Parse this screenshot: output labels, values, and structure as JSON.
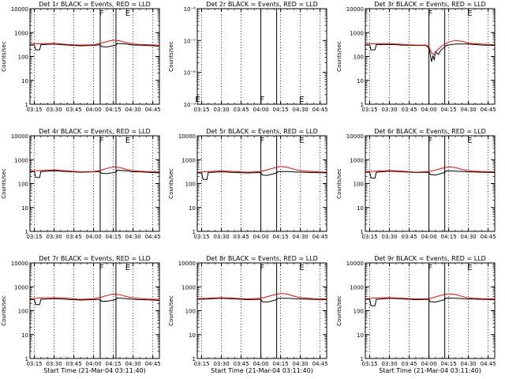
{
  "chart_data": [
    {
      "type": "line",
      "title": "Det 1r BLACK = Events, RED = LLD",
      "ylabel": "Counts/sec",
      "xlabel": "",
      "yscale": "log",
      "ylim": [
        1,
        10000
      ],
      "y_ticks": [
        "1",
        "10",
        "100",
        "1000",
        "10000"
      ],
      "x_ticks": [
        "03:15",
        "03:30",
        "03:45",
        "04:00",
        "04:15",
        "04:30",
        "04:45"
      ],
      "xlim": [
        "03:11:40",
        "04:50:00"
      ],
      "markers": [
        {
          "label": "F",
          "time": "04:06"
        },
        {
          "label": "E",
          "time": "04:26"
        }
      ],
      "solid_lines": [
        "04:05",
        "04:17"
      ],
      "series": [
        {
          "color": "#000000",
          "x": [
            "03:11:40",
            "03:15",
            "03:16",
            "03:19",
            "03:20",
            "03:30",
            "03:40",
            "03:50",
            "04:00",
            "04:05",
            "04:06",
            "04:10",
            "04:17",
            "04:18",
            "04:25",
            "04:30",
            "04:35",
            "04:45",
            "04:50"
          ],
          "y": [
            300,
            300,
            190,
            190,
            310,
            330,
            300,
            280,
            290,
            310,
            260,
            250,
            300,
            350,
            330,
            300,
            300,
            280,
            270
          ]
        },
        {
          "color": "#ff0000",
          "x": [
            "03:11:40",
            "03:20",
            "03:30",
            "03:40",
            "03:50",
            "04:00",
            "04:05",
            "04:10",
            "04:15",
            "04:20",
            "04:25",
            "04:30",
            "04:40",
            "04:50"
          ],
          "y": [
            330,
            340,
            350,
            320,
            300,
            310,
            350,
            420,
            480,
            450,
            380,
            330,
            310,
            300
          ]
        }
      ]
    },
    {
      "type": "line",
      "title": "Det 2r BLACK = Events, RED = LLD",
      "ylabel": "Counts/sec",
      "xlabel": "",
      "yscale": "log",
      "ylim": [
        1e-09,
        1e-06
      ],
      "y_ticks": [
        "10⁻⁹",
        "10⁻⁸",
        "10⁻⁷",
        "10⁻⁶"
      ],
      "x_ticks": [
        "03:15",
        "03:30",
        "03:45",
        "04:00",
        "04:15",
        "04:30",
        "04:45"
      ],
      "xlim": [
        "03:11:40",
        "04:50:00"
      ],
      "markers": [
        {
          "label": "E",
          "time": "03:12",
          "pos": "bottom"
        },
        {
          "label": "F",
          "time": "04:01",
          "pos": "bottom"
        },
        {
          "label": "E",
          "time": "04:31",
          "pos": "bottom"
        }
      ],
      "solid_lines": [
        "04:00",
        "04:12"
      ],
      "series": []
    },
    {
      "type": "line",
      "title": "Det 3r BLACK = Events, RED = LLD",
      "ylabel": "Counts/sec",
      "xlabel": "",
      "yscale": "log",
      "ylim": [
        1,
        10000
      ],
      "y_ticks": [
        "1",
        "10",
        "100",
        "1000",
        "10000"
      ],
      "x_ticks": [
        "03:15",
        "03:30",
        "03:45",
        "04:00",
        "04:15",
        "04:30",
        "04:45"
      ],
      "xlim": [
        "03:11:40",
        "04:50:00"
      ],
      "markers": [
        {
          "label": "F",
          "time": "04:01"
        },
        {
          "label": "E",
          "time": "04:31"
        }
      ],
      "solid_lines": [
        "04:00",
        "04:12"
      ],
      "series": [
        {
          "color": "#000000",
          "x": [
            "03:11:40",
            "03:15",
            "03:16",
            "03:19",
            "03:20",
            "03:30",
            "03:40",
            "03:50",
            "03:58",
            "04:00",
            "04:01",
            "04:02",
            "04:03",
            "04:04",
            "04:05",
            "04:07",
            "04:09",
            "04:12",
            "04:13",
            "04:20",
            "04:30",
            "04:40",
            "04:50"
          ],
          "y": [
            300,
            300,
            190,
            190,
            310,
            320,
            300,
            290,
            290,
            220,
            120,
            60,
            110,
            70,
            160,
            120,
            180,
            250,
            290,
            330,
            330,
            300,
            290
          ]
        },
        {
          "color": "#ff0000",
          "x": [
            "03:11:40",
            "03:20",
            "03:30",
            "03:40",
            "03:50",
            "03:58",
            "04:00",
            "04:02",
            "04:04",
            "04:06",
            "04:10",
            "04:15",
            "04:20",
            "04:25",
            "04:30",
            "04:40",
            "04:50"
          ],
          "y": [
            330,
            340,
            340,
            320,
            300,
            300,
            250,
            140,
            120,
            180,
            280,
            400,
            470,
            430,
            360,
            330,
            310
          ]
        }
      ]
    },
    {
      "type": "line",
      "title": "Det 4r BLACK = Events, RED = LLD",
      "ylabel": "Counts/sec",
      "xlabel": "",
      "yscale": "log",
      "ylim": [
        1,
        10000
      ],
      "y_ticks": [
        "1",
        "10",
        "100",
        "1000",
        "10000"
      ],
      "x_ticks": [
        "03:15",
        "03:30",
        "03:45",
        "04:00",
        "04:15",
        "04:30",
        "04:45"
      ],
      "xlim": [
        "03:11:40",
        "04:50:00"
      ],
      "markers": [
        {
          "label": "F",
          "time": "04:06"
        },
        {
          "label": "E",
          "time": "04:26"
        }
      ],
      "solid_lines": [
        "04:05",
        "04:17"
      ],
      "series": [
        {
          "color": "#000000",
          "x": [
            "03:11:40",
            "03:15",
            "03:16",
            "03:19",
            "03:20",
            "03:30",
            "03:40",
            "03:50",
            "04:00",
            "04:05",
            "04:06",
            "04:10",
            "04:17",
            "04:18",
            "04:25",
            "04:30",
            "04:35",
            "04:45",
            "04:50"
          ],
          "y": [
            320,
            320,
            180,
            180,
            320,
            340,
            320,
            300,
            310,
            320,
            270,
            260,
            300,
            360,
            340,
            310,
            310,
            290,
            280
          ]
        },
        {
          "color": "#ff0000",
          "x": [
            "03:11:40",
            "03:20",
            "03:30",
            "03:40",
            "03:50",
            "04:00",
            "04:05",
            "04:10",
            "04:15",
            "04:20",
            "04:25",
            "04:30",
            "04:40",
            "04:50"
          ],
          "y": [
            340,
            350,
            370,
            340,
            310,
            320,
            360,
            430,
            500,
            470,
            390,
            340,
            320,
            310
          ]
        }
      ]
    },
    {
      "type": "line",
      "title": "Det 5r BLACK = Events, RED = LLD",
      "ylabel": "Counts/sec",
      "xlabel": "",
      "yscale": "log",
      "ylim": [
        1,
        10000
      ],
      "y_ticks": [
        "1",
        "10",
        "100",
        "1000",
        "10000"
      ],
      "x_ticks": [
        "03:15",
        "03:30",
        "03:45",
        "04:00",
        "04:15",
        "04:30",
        "04:45"
      ],
      "xlim": [
        "03:11:40",
        "04:50:00"
      ],
      "markers": [
        {
          "label": "F",
          "time": "04:01"
        },
        {
          "label": "E",
          "time": "04:31"
        }
      ],
      "solid_lines": [
        "04:00",
        "04:12"
      ],
      "series": [
        {
          "color": "#000000",
          "x": [
            "03:11:40",
            "03:15",
            "03:16",
            "03:19",
            "03:20",
            "03:30",
            "03:40",
            "03:50",
            "04:00",
            "04:01",
            "04:05",
            "04:12",
            "04:13",
            "04:20",
            "04:30",
            "04:40",
            "04:50"
          ],
          "y": [
            280,
            280,
            150,
            150,
            290,
            310,
            290,
            280,
            290,
            230,
            220,
            280,
            320,
            320,
            300,
            290,
            280
          ]
        },
        {
          "color": "#ff0000",
          "x": [
            "03:11:40",
            "03:20",
            "03:30",
            "03:40",
            "03:50",
            "04:00",
            "04:05",
            "04:10",
            "04:15",
            "04:20",
            "04:25",
            "04:30",
            "04:40",
            "04:50"
          ],
          "y": [
            300,
            320,
            340,
            320,
            300,
            320,
            380,
            450,
            520,
            480,
            400,
            340,
            320,
            300
          ]
        }
      ]
    },
    {
      "type": "line",
      "title": "Det 6r BLACK = Events, RED = LLD",
      "ylabel": "Counts/sec",
      "xlabel": "",
      "yscale": "log",
      "ylim": [
        1,
        10000
      ],
      "y_ticks": [
        "1",
        "10",
        "100",
        "1000",
        "10000"
      ],
      "x_ticks": [
        "03:15",
        "03:30",
        "03:45",
        "04:00",
        "04:15",
        "04:30",
        "04:45"
      ],
      "xlim": [
        "03:11:40",
        "04:50:00"
      ],
      "markers": [
        {
          "label": "F",
          "time": "04:01"
        },
        {
          "label": "E",
          "time": "04:31"
        }
      ],
      "solid_lines": [
        "04:00",
        "04:12"
      ],
      "series": [
        {
          "color": "#000000",
          "x": [
            "03:11:40",
            "03:15",
            "03:16",
            "03:19",
            "03:20",
            "03:30",
            "03:40",
            "03:50",
            "04:00",
            "04:01",
            "04:05",
            "04:12",
            "04:13",
            "04:20",
            "04:30",
            "04:40",
            "04:50"
          ],
          "y": [
            300,
            300,
            170,
            170,
            300,
            330,
            310,
            290,
            300,
            240,
            230,
            290,
            340,
            330,
            310,
            300,
            290
          ]
        },
        {
          "color": "#ff0000",
          "x": [
            "03:11:40",
            "03:20",
            "03:30",
            "03:40",
            "03:50",
            "04:00",
            "04:05",
            "04:10",
            "04:15",
            "04:20",
            "04:25",
            "04:30",
            "04:40",
            "04:50"
          ],
          "y": [
            320,
            330,
            350,
            330,
            300,
            320,
            370,
            440,
            500,
            470,
            390,
            340,
            320,
            310
          ]
        }
      ]
    },
    {
      "type": "line",
      "title": "Det 7r BLACK = Events, RED = LLD",
      "ylabel": "Counts/sec",
      "xlabel": "Start Time (21-Mar-04 03:11:40)",
      "yscale": "log",
      "ylim": [
        1,
        10000
      ],
      "y_ticks": [
        "1",
        "10",
        "100",
        "1000",
        "10000"
      ],
      "x_ticks": [
        "03:15",
        "03:30",
        "03:45",
        "04:00",
        "04:15",
        "04:30",
        "04:45"
      ],
      "xlim": [
        "03:11:40",
        "04:50:00"
      ],
      "markers": [
        {
          "label": "F",
          "time": "04:06"
        },
        {
          "label": "E",
          "time": "04:26"
        }
      ],
      "solid_lines": [
        "04:05",
        "04:17"
      ],
      "series": [
        {
          "color": "#000000",
          "x": [
            "03:11:40",
            "03:15",
            "03:16",
            "03:19",
            "03:20",
            "03:30",
            "03:40",
            "03:50",
            "04:00",
            "04:05",
            "04:06",
            "04:10",
            "04:17",
            "04:18",
            "04:25",
            "04:30",
            "04:35",
            "04:45",
            "04:50"
          ],
          "y": [
            290,
            290,
            180,
            180,
            300,
            320,
            300,
            280,
            290,
            300,
            250,
            250,
            290,
            340,
            320,
            300,
            290,
            280,
            270
          ]
        },
        {
          "color": "#ff0000",
          "x": [
            "03:11:40",
            "03:20",
            "03:30",
            "03:40",
            "03:50",
            "04:00",
            "04:05",
            "04:10",
            "04:15",
            "04:20",
            "04:25",
            "04:30",
            "04:40",
            "04:50"
          ],
          "y": [
            320,
            340,
            350,
            330,
            300,
            320,
            360,
            430,
            500,
            470,
            390,
            340,
            310,
            300
          ]
        }
      ]
    },
    {
      "type": "line",
      "title": "Det 8r BLACK = Events, RED = LLD",
      "ylabel": "Counts/sec",
      "xlabel": "Start Time (21-Mar-04 03:11:40)",
      "yscale": "log",
      "ylim": [
        1,
        10000
      ],
      "y_ticks": [
        "1",
        "10",
        "100",
        "1000",
        "10000"
      ],
      "x_ticks": [
        "03:15",
        "03:30",
        "03:45",
        "04:00",
        "04:15",
        "04:30",
        "04:45"
      ],
      "xlim": [
        "03:11:40",
        "04:50:00"
      ],
      "markers": [
        {
          "label": "F",
          "time": "04:01"
        },
        {
          "label": "E",
          "time": "04:31"
        }
      ],
      "solid_lines": [
        "04:00",
        "04:12"
      ],
      "series": [
        {
          "color": "#000000",
          "x": [
            "03:11:40",
            "03:20",
            "03:30",
            "03:40",
            "03:50",
            "04:00",
            "04:01",
            "04:05",
            "04:12",
            "04:13",
            "04:20",
            "04:30",
            "04:40",
            "04:50"
          ],
          "y": [
            300,
            310,
            330,
            310,
            290,
            300,
            240,
            230,
            290,
            330,
            330,
            310,
            300,
            290
          ]
        },
        {
          "color": "#ff0000",
          "x": [
            "03:11:40",
            "03:20",
            "03:30",
            "03:40",
            "03:50",
            "04:00",
            "04:05",
            "04:10",
            "04:15",
            "04:20",
            "04:25",
            "04:30",
            "04:40",
            "04:50"
          ],
          "y": [
            320,
            330,
            350,
            330,
            310,
            330,
            390,
            460,
            530,
            500,
            410,
            350,
            320,
            310
          ]
        }
      ]
    },
    {
      "type": "line",
      "title": "Det 9r BLACK = Events, RED = LLD",
      "ylabel": "Counts/sec",
      "xlabel": "Start Time (21-Mar-04 03:11:40)",
      "yscale": "log",
      "ylim": [
        1,
        10000
      ],
      "y_ticks": [
        "1",
        "10",
        "100",
        "1000",
        "10000"
      ],
      "x_ticks": [
        "03:15",
        "03:30",
        "03:45",
        "04:00",
        "04:15",
        "04:30",
        "04:45"
      ],
      "xlim": [
        "03:11:40",
        "04:50:00"
      ],
      "markers": [
        {
          "label": "F",
          "time": "04:01"
        },
        {
          "label": "E",
          "time": "04:31"
        }
      ],
      "solid_lines": [
        "04:00",
        "04:12"
      ],
      "series": [
        {
          "color": "#000000",
          "x": [
            "03:11:40",
            "03:15",
            "03:16",
            "03:19",
            "03:20",
            "03:30",
            "03:40",
            "03:50",
            "04:00",
            "04:01",
            "04:05",
            "04:12",
            "04:13",
            "04:20",
            "04:30",
            "04:40",
            "04:50"
          ],
          "y": [
            300,
            300,
            160,
            160,
            300,
            330,
            310,
            290,
            300,
            240,
            230,
            290,
            340,
            330,
            310,
            300,
            290
          ]
        },
        {
          "color": "#ff0000",
          "x": [
            "03:11:40",
            "03:20",
            "03:30",
            "03:40",
            "03:50",
            "04:00",
            "04:05",
            "04:10",
            "04:15",
            "04:20",
            "04:25",
            "04:30",
            "04:40",
            "04:50"
          ],
          "y": [
            320,
            340,
            350,
            330,
            310,
            320,
            380,
            450,
            510,
            480,
            400,
            340,
            320,
            310
          ]
        }
      ]
    }
  ]
}
